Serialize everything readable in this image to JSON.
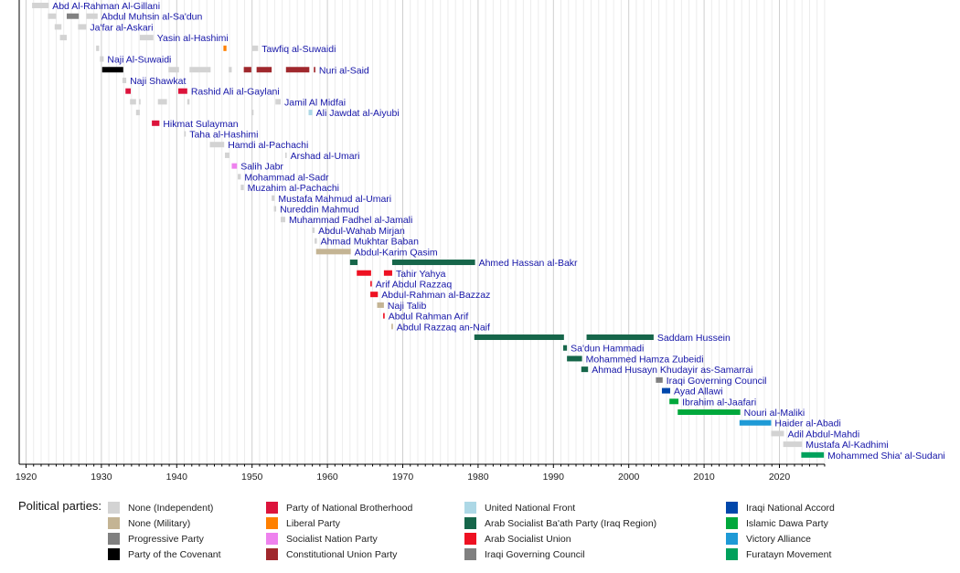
{
  "chart_data": {
    "type": "timeline",
    "xlim": [
      1920,
      2026
    ],
    "x_ticks": [
      1920,
      1930,
      1940,
      1950,
      1960,
      1970,
      1980,
      1990,
      2000,
      2010,
      2020
    ],
    "grid": "vertical, yearly minor and decade major",
    "legend_title": "Political parties:",
    "legend_placement": "bottom",
    "parties": [
      {
        "name": "None (Independent)",
        "color": "#d3d3d3"
      },
      {
        "name": "None (Military)",
        "color": "#c4b494"
      },
      {
        "name": "Progressive Party",
        "color": "#808080"
      },
      {
        "name": "Party of the Covenant",
        "color": "#000000"
      },
      {
        "name": "Party of National Brotherhood",
        "color": "#dc143c"
      },
      {
        "name": "Liberal Party",
        "color": "#ff8000"
      },
      {
        "name": "Socialist Nation Party",
        "color": "#ee82ee"
      },
      {
        "name": "Constitutional Union Party",
        "color": "#a0282d"
      },
      {
        "name": "United National Front",
        "color": "#add8e6"
      },
      {
        "name": "Arab Socialist Ba'ath Party (Iraq Region)",
        "color": "#16664a"
      },
      {
        "name": "Arab Socialist Union",
        "color": "#ee1122"
      },
      {
        "name": "Iraqi Governing Council",
        "color": "#808080"
      },
      {
        "name": "Iraqi National Accord",
        "color": "#0047ab"
      },
      {
        "name": "Islamic Dawa Party",
        "color": "#00a83c"
      },
      {
        "name": "Victory Alliance",
        "color": "#1e9ad6"
      },
      {
        "name": "Furatayn Movement",
        "color": "#00a15c"
      }
    ],
    "rows": [
      {
        "name": "Abd Al-Rahman Al-Gillani",
        "terms": [
          [
            1920.8,
            1923.0,
            0
          ]
        ]
      },
      {
        "name": "Abdul Muhsin al-Sa'dun",
        "terms": [
          [
            1922.9,
            1924.0,
            0
          ],
          [
            1925.4,
            1927.0,
            2
          ],
          [
            1928.0,
            1929.5,
            0
          ]
        ]
      },
      {
        "name": "Ja'far al-Askari",
        "terms": [
          [
            1923.8,
            1924.7,
            0
          ],
          [
            1926.9,
            1928.0,
            0
          ]
        ]
      },
      {
        "name": "Yasin al-Hashimi",
        "terms": [
          [
            1924.5,
            1925.4,
            0
          ],
          [
            1935.1,
            1936.9,
            0
          ]
        ]
      },
      {
        "name": "Tawfiq al-Suwaidi",
        "terms": [
          [
            1929.3,
            1929.7,
            0
          ],
          [
            1946.2,
            1946.6,
            5
          ],
          [
            1950.0,
            1950.8,
            0
          ]
        ]
      },
      {
        "name": "Naji Al-Suwaidi",
        "terms": [
          [
            1929.8,
            1930.3,
            0
          ]
        ]
      },
      {
        "name": "Nuri al-Said",
        "terms": [
          [
            1930.1,
            1932.9,
            3
          ],
          [
            1938.9,
            1940.3,
            0
          ],
          [
            1941.7,
            1944.5,
            0
          ],
          [
            1946.9,
            1947.3,
            0
          ],
          [
            1948.9,
            1949.9,
            7
          ],
          [
            1950.6,
            1952.6,
            7
          ],
          [
            1954.5,
            1957.6,
            7
          ],
          [
            1958.2,
            1958.4,
            7
          ]
        ]
      },
      {
        "name": "Naji Shawkat",
        "terms": [
          [
            1932.8,
            1933.3,
            0
          ]
        ]
      },
      {
        "name": "Rashid Ali al-Gaylani",
        "terms": [
          [
            1933.2,
            1933.9,
            4
          ],
          [
            1940.2,
            1941.4,
            4
          ]
        ]
      },
      {
        "name": "Jamil Al Midfai",
        "terms": [
          [
            1933.8,
            1934.6,
            0
          ],
          [
            1935.0,
            1935.2,
            0
          ],
          [
            1937.5,
            1938.7,
            0
          ],
          [
            1941.4,
            1941.7,
            0
          ],
          [
            1953.1,
            1953.8,
            0
          ]
        ]
      },
      {
        "name": "Ali Jawdat al-Aiyubi",
        "terms": [
          [
            1934.6,
            1935.1,
            0
          ],
          [
            1949.9,
            1950.2,
            0
          ],
          [
            1957.5,
            1958.0,
            8
          ]
        ]
      },
      {
        "name": "Hikmat Sulayman",
        "terms": [
          [
            1936.7,
            1937.7,
            4
          ]
        ]
      },
      {
        "name": "Taha al-Hashimi",
        "terms": [
          [
            1941.0,
            1941.2,
            0
          ]
        ]
      },
      {
        "name": "Hamdi al-Pachachi",
        "terms": [
          [
            1944.4,
            1946.3,
            0
          ]
        ]
      },
      {
        "name": "Arshad al-Umari",
        "terms": [
          [
            1946.4,
            1947.0,
            0
          ],
          [
            1954.4,
            1954.6,
            0
          ]
        ]
      },
      {
        "name": "Salih Jabr",
        "terms": [
          [
            1947.3,
            1948.0,
            6
          ]
        ]
      },
      {
        "name": "Mohammad al-Sadr",
        "terms": [
          [
            1948.1,
            1948.5,
            0
          ]
        ]
      },
      {
        "name": "Muzahim al-Pachachi",
        "terms": [
          [
            1948.5,
            1948.9,
            0
          ]
        ]
      },
      {
        "name": "Mustafa Mahmud al-Umari",
        "terms": [
          [
            1952.6,
            1953.0,
            0
          ]
        ]
      },
      {
        "name": "Nureddin Mahmud",
        "terms": [
          [
            1952.9,
            1953.2,
            0
          ]
        ]
      },
      {
        "name": "Muhammad Fadhel al-Jamali",
        "terms": [
          [
            1953.8,
            1954.4,
            0
          ]
        ]
      },
      {
        "name": "Abdul-Wahab Mirjan",
        "terms": [
          [
            1958.0,
            1958.3,
            0
          ]
        ]
      },
      {
        "name": "Ahmad Mukhtar Baban",
        "terms": [
          [
            1958.3,
            1958.6,
            0
          ]
        ]
      },
      {
        "name": "Abdul-Karim Qasim",
        "terms": [
          [
            1958.5,
            1963.1,
            1
          ]
        ]
      },
      {
        "name": "Ahmed Hassan al-Bakr",
        "terms": [
          [
            1963.0,
            1964.0,
            9
          ],
          [
            1968.6,
            1979.6,
            9
          ]
        ]
      },
      {
        "name": "Tahir Yahya",
        "terms": [
          [
            1963.9,
            1965.8,
            10
          ],
          [
            1967.5,
            1968.6,
            10
          ]
        ]
      },
      {
        "name": "Arif Abdul Razzaq",
        "terms": [
          [
            1965.7,
            1965.9,
            10
          ]
        ]
      },
      {
        "name": "Abdul-Rahman al-Bazzaz",
        "terms": [
          [
            1965.7,
            1966.7,
            10
          ]
        ]
      },
      {
        "name": "Naji Talib",
        "terms": [
          [
            1966.6,
            1967.5,
            1
          ]
        ]
      },
      {
        "name": "Abdul Rahman Arif",
        "terms": [
          [
            1967.4,
            1967.6,
            10
          ]
        ]
      },
      {
        "name": "Abdul Razzaq an-Naif",
        "terms": [
          [
            1968.5,
            1968.7,
            1
          ]
        ]
      },
      {
        "name": "Saddam Hussein",
        "terms": [
          [
            1979.5,
            1991.4,
            9
          ],
          [
            1994.4,
            2003.3,
            9
          ]
        ]
      },
      {
        "name": "Sa'dun Hammadi",
        "terms": [
          [
            1991.3,
            1991.8,
            9
          ]
        ]
      },
      {
        "name": "Mohammed Hamza Zubeidi",
        "terms": [
          [
            1991.8,
            1993.8,
            9
          ]
        ]
      },
      {
        "name": "Ahmad Husayn Khudayir as-Samarrai",
        "terms": [
          [
            1993.7,
            1994.6,
            9
          ]
        ]
      },
      {
        "name": "Iraqi Governing Council",
        "terms": [
          [
            2003.6,
            2004.5,
            11
          ]
        ]
      },
      {
        "name": "Ayad Allawi",
        "terms": [
          [
            2004.4,
            2005.5,
            12
          ]
        ]
      },
      {
        "name": "Ibrahim al-Jaafari",
        "terms": [
          [
            2005.4,
            2006.6,
            13
          ]
        ]
      },
      {
        "name": "Nouri al-Maliki",
        "terms": [
          [
            2006.5,
            2014.8,
            13
          ]
        ]
      },
      {
        "name": "Haider al-Abadi",
        "terms": [
          [
            2014.7,
            2018.9,
            14
          ]
        ]
      },
      {
        "name": "Adil Abdul-Mahdi",
        "terms": [
          [
            2018.9,
            2020.6,
            0
          ]
        ]
      },
      {
        "name": "Mustafa Al-Kadhimi",
        "terms": [
          [
            2020.5,
            2023.0,
            0
          ]
        ]
      },
      {
        "name": "Mohammed Shia' al-Sudani",
        "terms": [
          [
            2022.9,
            2025.9,
            15
          ]
        ]
      }
    ]
  }
}
